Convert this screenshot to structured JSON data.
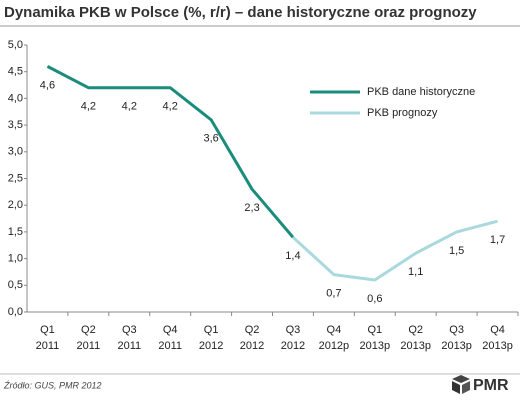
{
  "chart_data": {
    "type": "line",
    "title": "Dynamika PKB w Polsce (%, r/r) – dane historyczne oraz prognozy",
    "categories": [
      [
        "Q1",
        "2011"
      ],
      [
        "Q2",
        "2011"
      ],
      [
        "Q3",
        "2011"
      ],
      [
        "Q4",
        "2011"
      ],
      [
        "Q1",
        "2012"
      ],
      [
        "Q2",
        "2012"
      ],
      [
        "Q3",
        "2012"
      ],
      [
        "Q4",
        "2012p"
      ],
      [
        "Q1",
        "2013p"
      ],
      [
        "Q2",
        "2013p"
      ],
      [
        "Q3",
        "2013p"
      ],
      [
        "Q4",
        "2013p"
      ]
    ],
    "series": [
      {
        "name": "PKB dane historyczne",
        "color": "#1b8c7c",
        "values": [
          4.6,
          4.2,
          4.2,
          4.2,
          3.6,
          2.3,
          1.4,
          null,
          null,
          null,
          null,
          null
        ],
        "value_labels": [
          "4,6",
          "4,2",
          "4,2",
          "4,2",
          "3,6",
          "2,3",
          "1,4",
          null,
          null,
          null,
          null,
          null
        ]
      },
      {
        "name": "PKB prognozy",
        "color": "#a9d9dd",
        "values": [
          null,
          null,
          null,
          null,
          null,
          null,
          1.4,
          0.7,
          0.6,
          1.1,
          1.5,
          1.7
        ],
        "value_labels": [
          null,
          null,
          null,
          null,
          null,
          null,
          null,
          "0,7",
          "0,6",
          "1,1",
          "1,5",
          "1,7"
        ]
      }
    ],
    "ylim": [
      0,
      5
    ],
    "yticks": [
      {
        "value": 0,
        "label": "0,0"
      },
      {
        "value": 0.5,
        "label": "0,5"
      },
      {
        "value": 1,
        "label": "1,0"
      },
      {
        "value": 1.5,
        "label": "1,5"
      },
      {
        "value": 2,
        "label": "2,0"
      },
      {
        "value": 2.5,
        "label": "2,5"
      },
      {
        "value": 3,
        "label": "3,0"
      },
      {
        "value": 3.5,
        "label": "3,5"
      },
      {
        "value": 4,
        "label": "4,0"
      },
      {
        "value": 4.5,
        "label": "4,5"
      },
      {
        "value": 5,
        "label": "5,0"
      }
    ],
    "grid": false,
    "legend": "upper right",
    "source": "Źródło: GUS, PMR 2012",
    "logo": "PMR"
  }
}
